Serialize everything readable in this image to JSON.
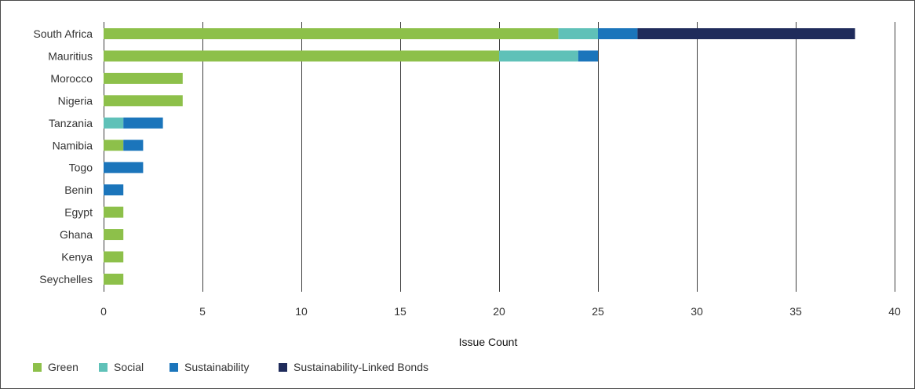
{
  "chart_data": {
    "type": "bar",
    "orientation": "horizontal",
    "stacked": true,
    "categories": [
      "South Africa",
      "Mauritius",
      "Morocco",
      "Nigeria",
      "Tanzania",
      "Namibia",
      "Togo",
      "Benin",
      "Egypt",
      "Ghana",
      "Kenya",
      "Seychelles"
    ],
    "series": [
      {
        "name": "Green",
        "color": "#8dc04a",
        "values": [
          23,
          20,
          4,
          4,
          0,
          1,
          0,
          0,
          1,
          1,
          1,
          1
        ]
      },
      {
        "name": "Social",
        "color": "#5fc1b8",
        "values": [
          2,
          4,
          0,
          0,
          1,
          0,
          0,
          0,
          0,
          0,
          0,
          0
        ]
      },
      {
        "name": "Sustainability",
        "color": "#1b75bb",
        "values": [
          2,
          1,
          0,
          0,
          2,
          1,
          2,
          1,
          0,
          0,
          0,
          0
        ]
      },
      {
        "name": "Sustainability-Linked Bonds",
        "color": "#1f2b5b",
        "values": [
          11,
          0,
          0,
          0,
          0,
          0,
          0,
          0,
          0,
          0,
          0,
          0
        ]
      }
    ],
    "xlabel": "Issue Count",
    "xlim": [
      0,
      40
    ],
    "xticks": [
      0,
      5,
      10,
      15,
      20,
      25,
      30,
      35,
      40
    ],
    "grid": "vertical",
    "legend_position": "bottom-left"
  }
}
